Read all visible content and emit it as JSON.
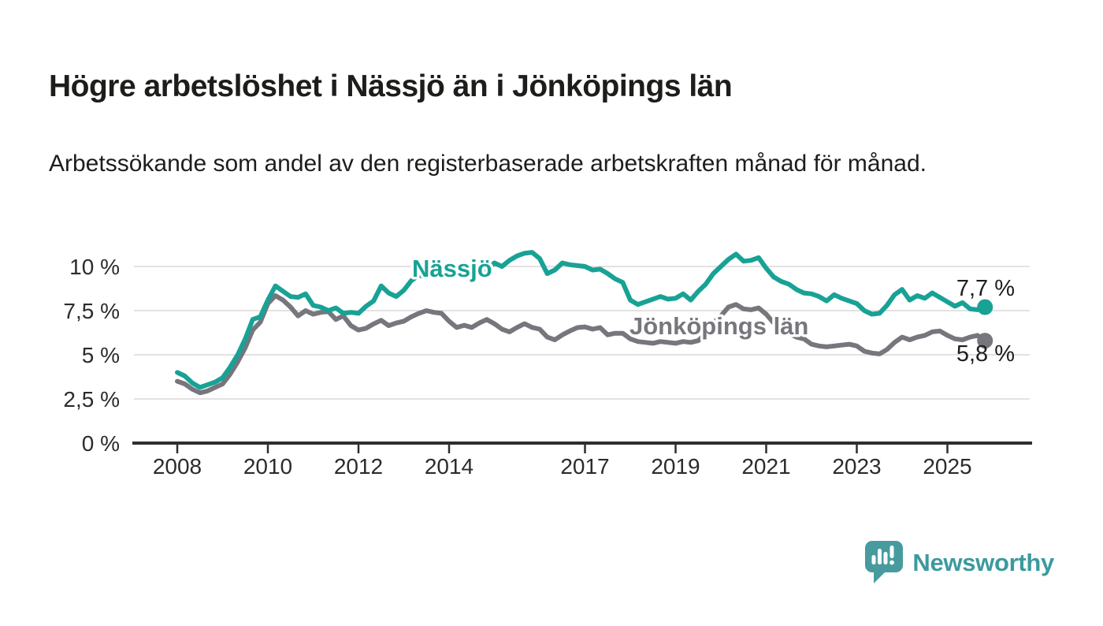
{
  "header": {
    "title": "Högre arbetslöshet i Nässjö än i Jönköpings län",
    "subtitle": "Arbetssökande som andel av den registerbaserade arbetskraften månad för månad."
  },
  "chart_data": {
    "type": "line",
    "title": "Högre arbetslöshet i Nässjö än i Jönköpings län",
    "subtitle": "Arbetssökande som andel av den registerbaserade arbetskraften månad för månad.",
    "unit": "%",
    "grid": "horizontal",
    "legend": "inline-labels",
    "ylim": [
      0,
      11.5
    ],
    "xlim": [
      2007.0,
      2026.8
    ],
    "x_start": 2008,
    "x_step": 0.1666667,
    "x_end": 2025.83,
    "y_ticks": [
      {
        "value": 0,
        "label": "0 %"
      },
      {
        "value": 2.5,
        "label": "2,5 %"
      },
      {
        "value": 5,
        "label": "5 %"
      },
      {
        "value": 7.5,
        "label": "7,5 %"
      },
      {
        "value": 10,
        "label": "10 %"
      }
    ],
    "x_ticks": [
      {
        "value": 2008,
        "label": "2008"
      },
      {
        "value": 2010,
        "label": "2010"
      },
      {
        "value": 2012,
        "label": "2012"
      },
      {
        "value": 2014,
        "label": "2014"
      },
      {
        "value": 2017,
        "label": "2017"
      },
      {
        "value": 2019,
        "label": "2019"
      },
      {
        "value": 2021,
        "label": "2021"
      },
      {
        "value": 2023,
        "label": "2023"
      },
      {
        "value": 2025,
        "label": "2025"
      }
    ],
    "colors": {
      "nassjo": "#18a295",
      "jonkoping": "#77767d",
      "grid": "#d9d9d9",
      "axis": "#2e2e2e"
    },
    "series": [
      {
        "name": "Nässjö",
        "color": "#18a295",
        "end_label": "7,7 %",
        "end_value": 7.7,
        "values": [
          4.0,
          3.8,
          3.4,
          3.15,
          3.3,
          3.45,
          3.7,
          4.3,
          5.0,
          5.9,
          7.0,
          7.15,
          8.1,
          8.9,
          8.6,
          8.3,
          8.25,
          8.45,
          7.8,
          7.7,
          7.5,
          7.65,
          7.35,
          7.4,
          7.35,
          7.75,
          8.05,
          8.9,
          8.5,
          8.3,
          8.65,
          9.2,
          9.5,
          9.4,
          9.55,
          9.65,
          9.8,
          9.5,
          9.7,
          9.4,
          9.55,
          9.8,
          10.2,
          10.0,
          10.35,
          10.6,
          10.75,
          10.8,
          10.45,
          9.6,
          9.8,
          10.2,
          10.1,
          10.05,
          10.0,
          9.8,
          9.85,
          9.6,
          9.3,
          9.1,
          8.1,
          7.85,
          8.0,
          8.15,
          8.3,
          8.15,
          8.2,
          8.45,
          8.1,
          8.6,
          9.0,
          9.6,
          10.0,
          10.4,
          10.7,
          10.3,
          10.35,
          10.5,
          9.9,
          9.4,
          9.15,
          9.0,
          8.7,
          8.5,
          8.45,
          8.3,
          8.05,
          8.4,
          8.2,
          8.05,
          7.9,
          7.5,
          7.3,
          7.35,
          7.8,
          8.4,
          8.7,
          8.1,
          8.35,
          8.2,
          8.5,
          8.25,
          8.0,
          7.75,
          7.95,
          7.6,
          7.55,
          7.7
        ]
      },
      {
        "name": "Jönköpings län",
        "color": "#77767d",
        "end_label": "5,8 %",
        "end_value": 5.8,
        "values": [
          3.5,
          3.35,
          3.05,
          2.85,
          2.95,
          3.15,
          3.35,
          3.9,
          4.6,
          5.4,
          6.4,
          6.85,
          7.9,
          8.35,
          8.1,
          7.7,
          7.2,
          7.5,
          7.3,
          7.4,
          7.45,
          7.0,
          7.2,
          6.65,
          6.4,
          6.5,
          6.75,
          6.95,
          6.65,
          6.8,
          6.9,
          7.15,
          7.35,
          7.5,
          7.4,
          7.35,
          6.9,
          6.55,
          6.67,
          6.55,
          6.8,
          7.0,
          6.76,
          6.45,
          6.3,
          6.55,
          6.76,
          6.55,
          6.45,
          6.0,
          5.85,
          6.13,
          6.35,
          6.54,
          6.58,
          6.45,
          6.54,
          6.13,
          6.22,
          6.22,
          5.9,
          5.75,
          5.7,
          5.65,
          5.75,
          5.7,
          5.65,
          5.75,
          5.7,
          5.8,
          6.2,
          6.8,
          7.2,
          7.7,
          7.85,
          7.6,
          7.55,
          7.65,
          7.3,
          6.8,
          6.5,
          6.2,
          6.0,
          5.9,
          5.6,
          5.5,
          5.45,
          5.5,
          5.55,
          5.6,
          5.5,
          5.2,
          5.1,
          5.05,
          5.3,
          5.7,
          6.0,
          5.85,
          6.0,
          6.1,
          6.3,
          6.35,
          6.1,
          5.9,
          5.85,
          6.0,
          6.1,
          5.8
        ]
      }
    ]
  },
  "footer": {
    "brand": "Newsworthy",
    "brand_color": "#3b9a9e"
  }
}
